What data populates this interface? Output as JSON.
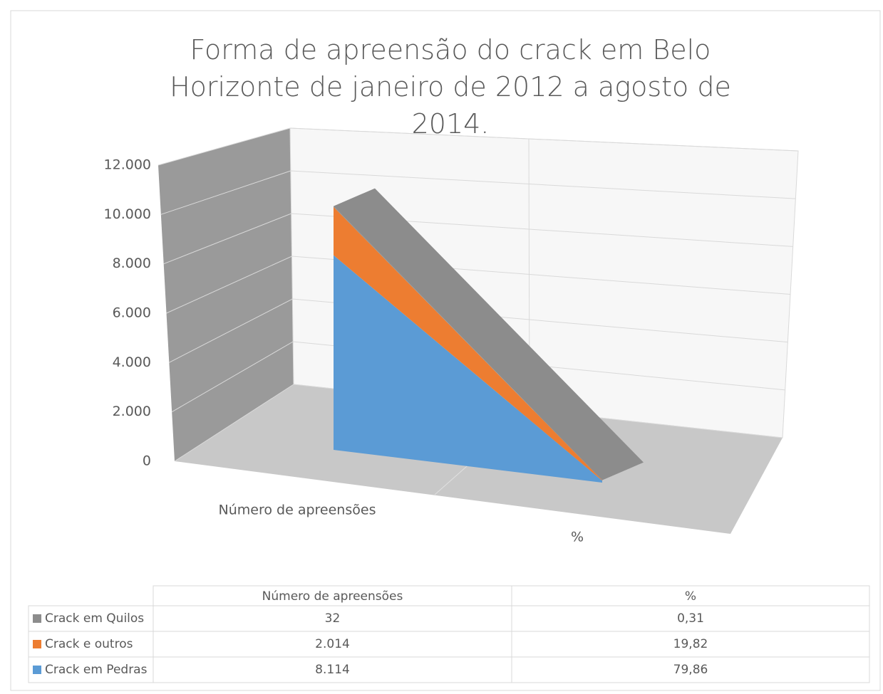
{
  "chart_data": {
    "type": "area3d_stacked",
    "title": "Forma de apreensão do crack em Belo Horizonte de janeiro de 2012 a agosto de 2014.",
    "categories": [
      "Número de apreensões",
      "%"
    ],
    "series": [
      {
        "name": "Crack em Quilos",
        "color": "#8c8c8c",
        "values": [
          32,
          0.31
        ],
        "value_labels": [
          "32",
          "0,31"
        ]
      },
      {
        "name": "Crack e outros",
        "color": "#ed7d31",
        "values": [
          2014,
          19.82
        ],
        "value_labels": [
          "2.014",
          "19,82"
        ]
      },
      {
        "name": "Crack em Pedras",
        "color": "#5b9bd5",
        "values": [
          8114,
          79.86
        ],
        "value_labels": [
          "8.114",
          "79,86"
        ]
      }
    ],
    "ylim": [
      0,
      12000
    ],
    "yticks": [
      0,
      {
        "value": 2000,
        "label": "2.000"
      },
      {
        "value": 4000,
        "label": "4.000"
      },
      {
        "value": 6000,
        "label": "6.000"
      },
      {
        "value": 8000,
        "label": "8.000"
      },
      {
        "value": 10000,
        "label": "10.000"
      },
      {
        "value": 12000,
        "label": "12.000"
      }
    ],
    "grid": true
  }
}
